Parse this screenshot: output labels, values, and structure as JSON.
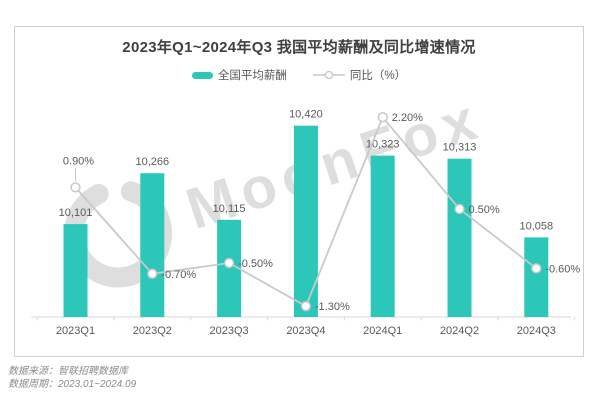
{
  "watermark": {
    "text": "MoonFox"
  },
  "footer": {
    "source": "数据来源：智联招聘数据库",
    "period": "数据周期：2023.01~2024.09"
  },
  "chart_data": {
    "type": "bar+line",
    "title": "2023年Q1~2024年Q3 我国平均薪酬及同比增速情况",
    "categories": [
      "2023Q1",
      "2023Q2",
      "2023Q3",
      "2023Q4",
      "2024Q1",
      "2024Q2",
      "2024Q3"
    ],
    "series": [
      {
        "name": "全国平均薪酬",
        "type": "bar",
        "color": "#2cc7b8",
        "values": [
          10101,
          10266,
          10115,
          10420,
          10323,
          10313,
          10058
        ],
        "labels": [
          "10,101",
          "10,266",
          "10,115",
          "10,420",
          "10,323",
          "10,313",
          "10,058"
        ]
      },
      {
        "name": "同比（%）",
        "type": "line",
        "color": "#c9c9c9",
        "marker": "open-circle",
        "values": [
          0.9,
          -0.7,
          -0.5,
          -1.3,
          2.2,
          0.5,
          -0.6
        ],
        "labels": [
          "0.90%",
          "-0.70%",
          "-0.50%",
          "-1.30%",
          "2.20%",
          "0.50%",
          "-0.60%"
        ],
        "label_positions": [
          "above",
          "right",
          "right",
          "right",
          "right",
          "right",
          "right"
        ]
      }
    ],
    "axes": {
      "salary": {
        "min": 9800,
        "max": 10500,
        "visible": false
      },
      "yoy": {
        "min": -1.5,
        "max": 2.5,
        "visible": false
      }
    },
    "grid": false,
    "legend_position": "top",
    "colors": {
      "bar": "#2cc7b8",
      "line": "#c9c9c9",
      "axis": "#d9d9d9",
      "label_text": "#595959",
      "title_text": "#404040",
      "watermark": "#d9d9d9"
    }
  }
}
